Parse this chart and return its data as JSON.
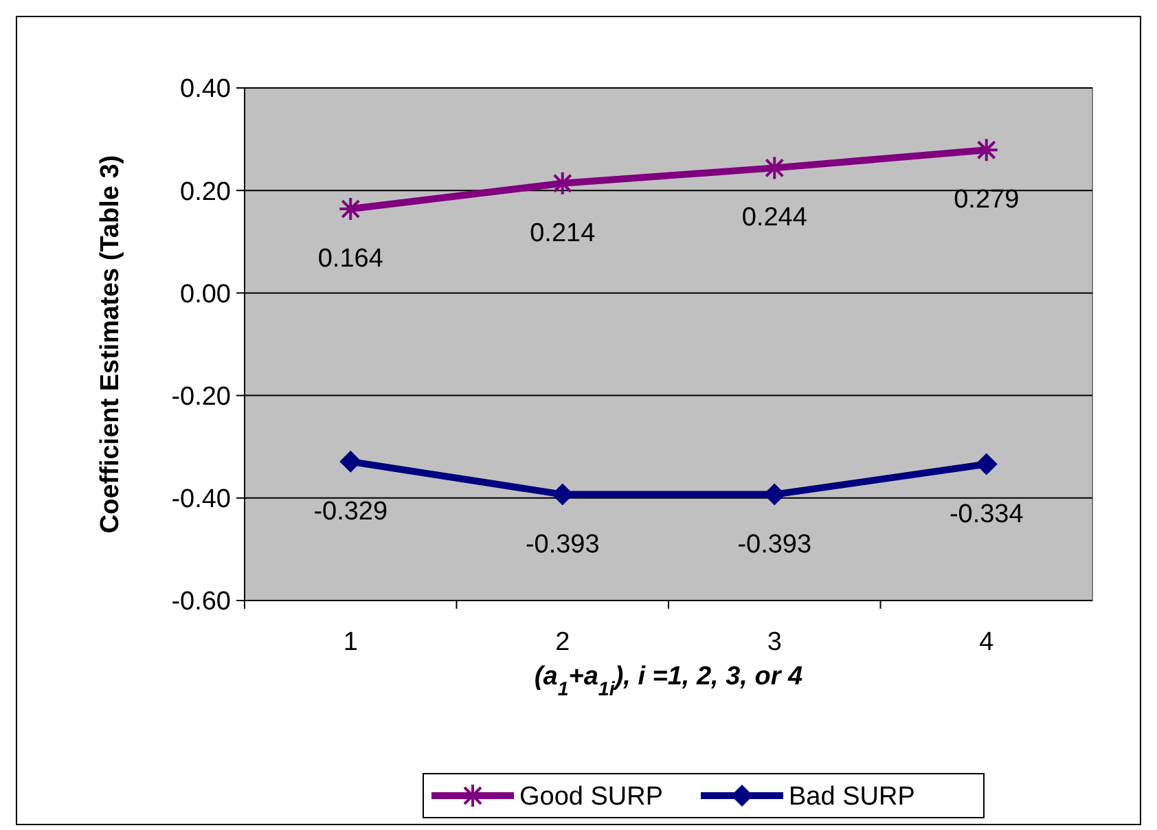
{
  "chart_data": {
    "type": "line",
    "ylabel": "Coefficient Estimates (Table 3)",
    "xlabel": "(a$_{1}$+a$_{1i}$),  i =1, 2, 3, or 4",
    "categories": [
      "1",
      "2",
      "3",
      "4"
    ],
    "series": [
      {
        "name": "Good SURP",
        "color": "#800080",
        "marker": "cross",
        "values": [
          0.164,
          0.214,
          0.244,
          0.279
        ]
      },
      {
        "name": "Bad SURP",
        "color": "#000080",
        "marker": "diamond",
        "values": [
          -0.329,
          -0.393,
          -0.393,
          -0.334
        ]
      }
    ],
    "ylim": [
      -0.6,
      0.4
    ],
    "yticks": [
      {
        "value": -0.6,
        "label": "-0.60"
      },
      {
        "value": -0.4,
        "label": "-0.40"
      },
      {
        "value": -0.2,
        "label": "-0.20"
      },
      {
        "value": 0,
        "label": "0.00"
      },
      {
        "value": 0.2,
        "label": "0.20"
      },
      {
        "value": 0.4,
        "label": "0.40"
      }
    ],
    "grid": "y",
    "data_labels": true,
    "legend": "bottom",
    "line_style": "solid"
  }
}
